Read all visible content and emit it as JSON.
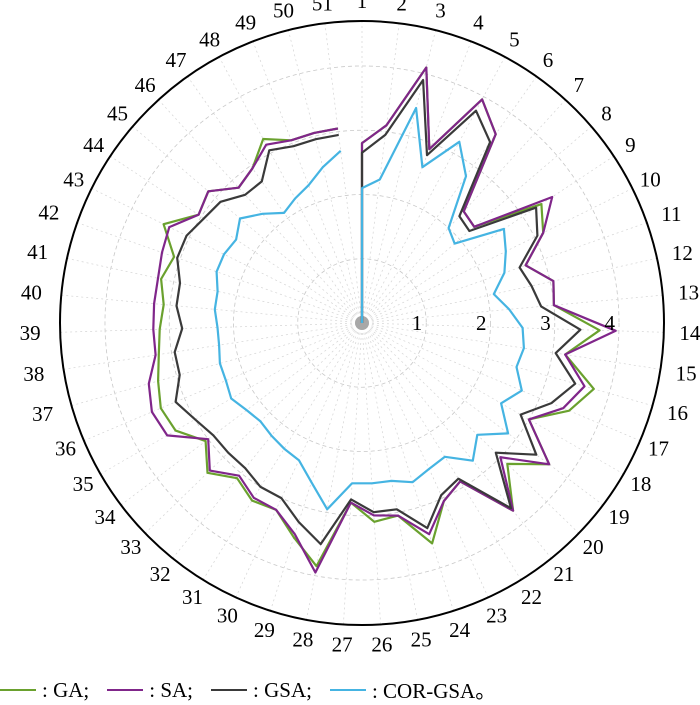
{
  "chart_data": {
    "type": "radar",
    "title": "",
    "categories": [
      "1",
      "2",
      "3",
      "4",
      "5",
      "6",
      "7",
      "8",
      "9",
      "10",
      "11",
      "12",
      "13",
      "14",
      "15",
      "16",
      "17",
      "18",
      "19",
      "20",
      "21",
      "22",
      "23",
      "24",
      "25",
      "26",
      "27",
      "28",
      "29",
      "30",
      "31",
      "32",
      "33",
      "34",
      "35",
      "36",
      "37",
      "38",
      "39",
      "40",
      "41",
      "42",
      "43",
      "44",
      "45",
      "46",
      "47",
      "48",
      "49",
      "50",
      "51"
    ],
    "radial_ticks": [
      "1",
      "2",
      "3",
      "4"
    ],
    "rlim": [
      0,
      4.7
    ],
    "grid": true,
    "legend_position": "bottom",
    "series": [
      {
        "name": "GA",
        "color": "#6aa12e",
        "values": [
          2.8,
          3.1,
          4.1,
          2.9,
          3.95,
          3.6,
          2.35,
          2.3,
          3.35,
          3.15,
          2.7,
          3.05,
          3.0,
          3.7,
          3.2,
          3.75,
          3.5,
          3.0,
          3.65,
          3.15,
          3.75,
          2.9,
          3.05,
          3.6,
          3.05,
          3.1,
          2.8,
          3.85,
          3.5,
          3.2,
          3.25,
          3.1,
          3.35,
          3.05,
          3.35,
          3.4,
          3.3,
          3.2,
          3.15,
          3.1,
          3.2,
          3.1,
          3.45,
          3.05,
          3.15,
          2.85,
          2.95,
          3.25,
          3.05,
          3.05,
          3.05
        ]
      },
      {
        "name": "SA",
        "color": "#80268a",
        "values": [
          2.8,
          3.1,
          4.1,
          2.9,
          3.95,
          3.6,
          2.35,
          2.3,
          3.55,
          3.15,
          2.7,
          3.05,
          3.0,
          3.95,
          3.2,
          3.6,
          3.4,
          3.0,
          3.65,
          3.0,
          3.75,
          2.9,
          3.05,
          3.45,
          3.05,
          3.0,
          2.8,
          3.95,
          3.45,
          3.2,
          3.2,
          3.05,
          3.3,
          3.0,
          3.5,
          3.55,
          3.45,
          3.25,
          3.25,
          3.25,
          3.25,
          3.3,
          3.35,
          3.05,
          3.15,
          2.85,
          2.95,
          3.15,
          3.05,
          3.05,
          3.05
        ]
      },
      {
        "name": "GSA",
        "color": "#3a3a3a",
        "values": [
          2.65,
          2.95,
          3.9,
          2.8,
          3.75,
          3.45,
          2.25,
          2.2,
          3.25,
          3.05,
          2.6,
          2.7,
          2.8,
          3.4,
          3.05,
          3.45,
          3.2,
          2.85,
          3.4,
          2.9,
          3.7,
          2.85,
          2.95,
          3.35,
          2.95,
          2.95,
          2.75,
          3.5,
          3.25,
          3.0,
          3.0,
          2.9,
          2.9,
          2.9,
          3.0,
          3.15,
          2.95,
          2.95,
          2.8,
          2.9,
          2.9,
          3.05,
          3.05,
          2.95,
          2.9,
          2.7,
          2.7,
          3.05,
          2.95,
          2.95,
          2.95
        ]
      },
      {
        "name": "COR-GSA",
        "color": "#45b4e2",
        "values": [
          2.1,
          2.25,
          3.45,
          2.6,
          3.2,
          2.8,
          2.0,
          1.9,
          2.65,
          2.5,
          2.35,
          2.1,
          2.3,
          2.5,
          2.55,
          2.5,
          2.7,
          2.5,
          2.85,
          2.5,
          2.75,
          2.45,
          2.5,
          2.6,
          2.5,
          2.5,
          2.5,
          2.95,
          2.6,
          2.35,
          2.3,
          2.25,
          2.2,
          2.25,
          2.35,
          2.3,
          2.3,
          2.25,
          2.25,
          2.3,
          2.3,
          2.4,
          2.4,
          2.35,
          2.5,
          2.3,
          2.1,
          2.2,
          2.3,
          2.5,
          2.7
        ]
      }
    ]
  },
  "legend": [
    {
      "label": ": GA;",
      "color": "#6aa12e"
    },
    {
      "label": ": SA;",
      "color": "#80268a"
    },
    {
      "label": ": GSA;",
      "color": "#3a3a3a"
    },
    {
      "label": ": COR-GSA。",
      "color": "#45b4e2"
    }
  ]
}
